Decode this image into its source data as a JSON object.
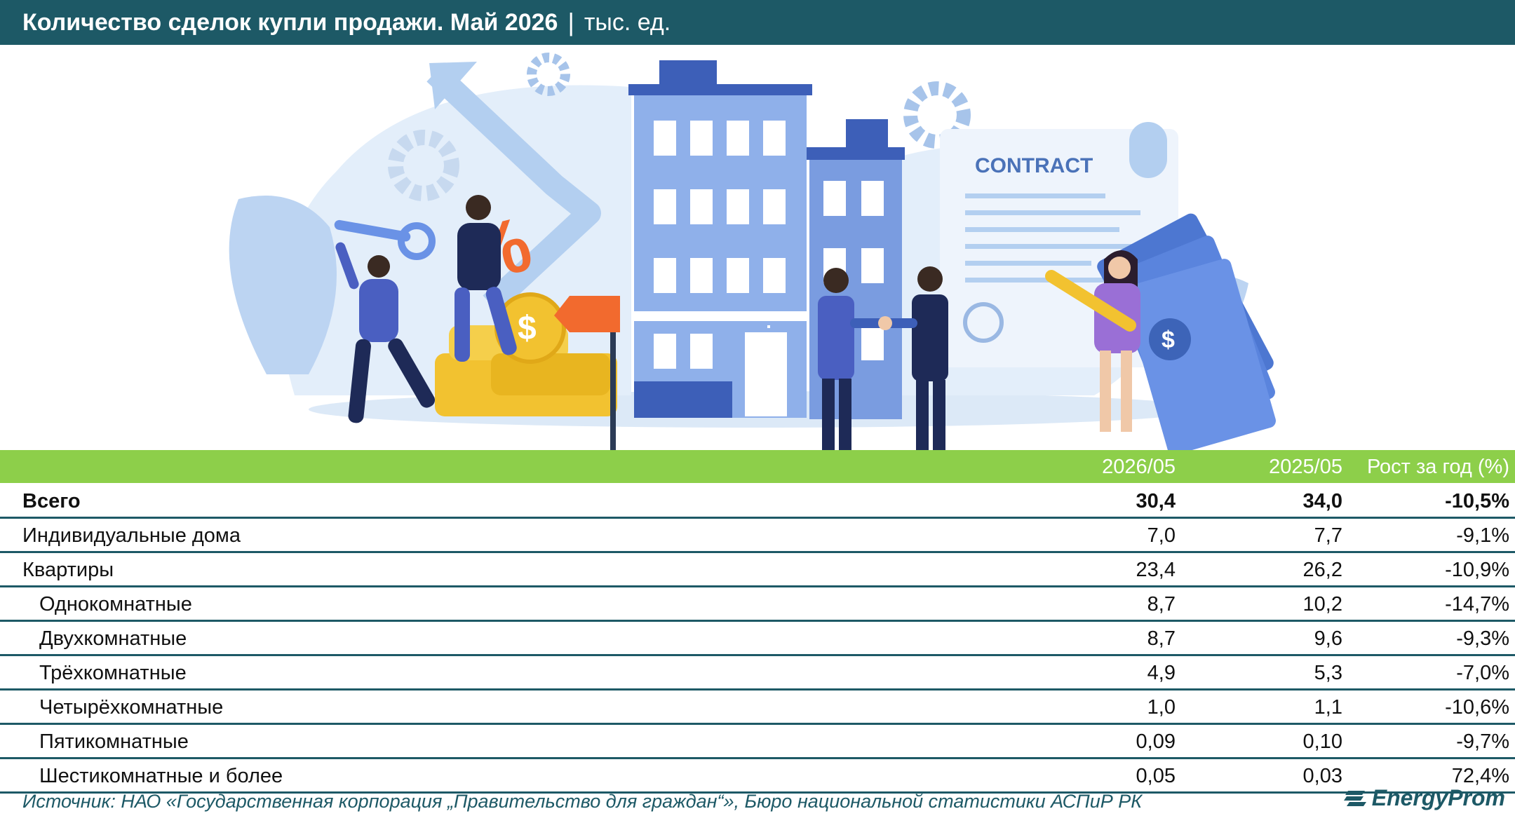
{
  "header": {
    "title": "Количество сделок купли продажи. Май 2026",
    "separator": "|",
    "unit": "тыс. ед."
  },
  "illustration": {
    "contract_text": "CONTRACT",
    "percent_sign": "%",
    "dollar_sign": "$"
  },
  "chart_data": {
    "type": "table",
    "columns": [
      "2026/05",
      "2025/05",
      "Рост за год (%)"
    ],
    "rows": [
      {
        "label": "Всего",
        "values": [
          "30,4",
          "34,0",
          "-10,5%"
        ],
        "bold": true,
        "indent": false
      },
      {
        "label": "Индивидуальные дома",
        "values": [
          "7,0",
          "7,7",
          "-9,1%"
        ],
        "bold": false,
        "indent": false
      },
      {
        "label": "Квартиры",
        "values": [
          "23,4",
          "26,2",
          "-10,9%"
        ],
        "bold": false,
        "indent": false
      },
      {
        "label": "Однокомнатные",
        "values": [
          "8,7",
          "10,2",
          "-14,7%"
        ],
        "bold": false,
        "indent": true
      },
      {
        "label": "Двухкомнатные",
        "values": [
          "8,7",
          "9,6",
          "-9,3%"
        ],
        "bold": false,
        "indent": true
      },
      {
        "label": "Трёхкомнатные",
        "values": [
          "4,9",
          "5,3",
          "-7,0%"
        ],
        "bold": false,
        "indent": true
      },
      {
        "label": "Четырёхкомнатные",
        "values": [
          "1,0",
          "1,1",
          "-10,6%"
        ],
        "bold": false,
        "indent": true
      },
      {
        "label": "Пятикомнатные",
        "values": [
          "0,09",
          "0,10",
          "-9,7%"
        ],
        "bold": false,
        "indent": true
      },
      {
        "label": "Шестикомнатные и более",
        "values": [
          "0,05",
          "0,03",
          "72,4%"
        ],
        "bold": false,
        "indent": true
      }
    ]
  },
  "footer": {
    "source": "Источник: НАО «Государственная корпорация „Правительство для граждан“», Бюро национальной статистики АСПиР РК",
    "logo_text": "EnergyProm"
  },
  "colors": {
    "title_bg": "#1d5966",
    "header_bg": "#8dcf4a",
    "rule": "#1d5966",
    "building": "#7f9fde",
    "coin": "#f2c230",
    "accent": "#f26a2e"
  },
  "icons": [
    "gear-icon",
    "arrow-up-icon",
    "key-icon",
    "dollar-icon",
    "logo-icon"
  ]
}
